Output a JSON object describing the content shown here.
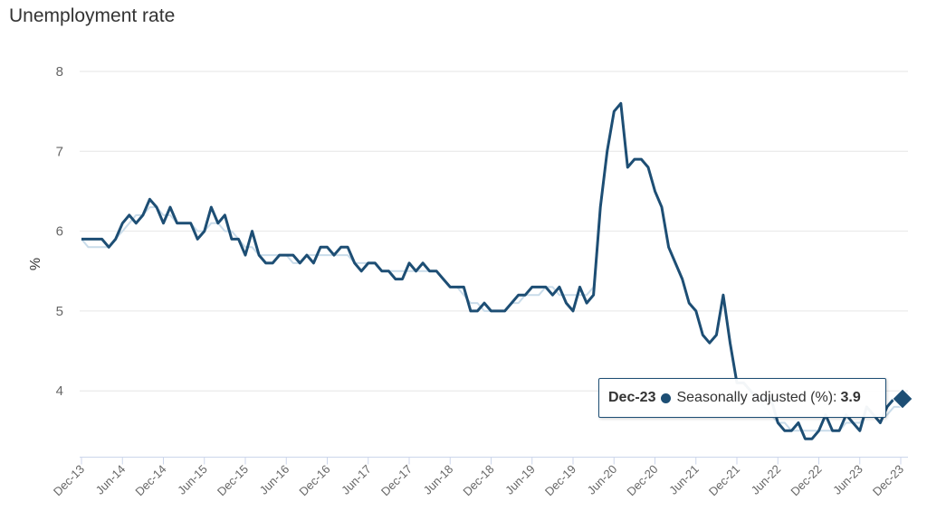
{
  "chart_data": {
    "type": "line",
    "title": "Unemployment rate",
    "xlabel": "",
    "ylabel": "%",
    "ylim": [
      3.17,
      8
    ],
    "yticks": [
      4,
      5,
      6,
      7,
      8
    ],
    "grid": true,
    "x_tick_labels": [
      "Dec-13",
      "Jun-14",
      "Dec-14",
      "Jun-15",
      "Dec-15",
      "Jun-16",
      "Dec-16",
      "Jun-17",
      "Dec-17",
      "Jun-18",
      "Dec-18",
      "Jun-19",
      "Dec-19",
      "Jun-20",
      "Dec-20",
      "Jun-21",
      "Dec-21",
      "Jun-22",
      "Dec-22",
      "Jun-23",
      "Dec-23"
    ],
    "x_start": "Dec-13",
    "x_frequency": "monthly",
    "series": [
      {
        "name": "",
        "color": "#c9dcea",
        "values": [
          5.9,
          5.8,
          5.8,
          5.8,
          5.8,
          5.9,
          6.0,
          6.1,
          6.2,
          6.2,
          6.3,
          6.3,
          6.2,
          6.2,
          6.1,
          6.1,
          6.1,
          6.0,
          6.0,
          6.1,
          6.1,
          6.0,
          6.0,
          5.9,
          5.8,
          5.8,
          5.7,
          5.7,
          5.7,
          5.7,
          5.7,
          5.6,
          5.6,
          5.7,
          5.7,
          5.7,
          5.7,
          5.7,
          5.7,
          5.7,
          5.6,
          5.6,
          5.6,
          5.6,
          5.5,
          5.5,
          5.5,
          5.5,
          5.5,
          5.5,
          5.5,
          5.5,
          5.5,
          5.4,
          5.3,
          5.3,
          5.2,
          5.1,
          5.1,
          5.0,
          5.0,
          5.0,
          5.0,
          5.1,
          5.1,
          5.2,
          5.2,
          5.2,
          5.3,
          5.3,
          5.2,
          5.2,
          5.2,
          5.2,
          5.2,
          5.3,
          6.3,
          7.0,
          7.5,
          7.6,
          6.8,
          6.9,
          6.9,
          6.8,
          6.5,
          6.3,
          5.8,
          5.6,
          5.4,
          5.1,
          5.0,
          4.7,
          4.6,
          4.7,
          5.2,
          4.6,
          4.1,
          4.1,
          4.0,
          3.9,
          3.8,
          3.7,
          3.6,
          3.6,
          3.5,
          3.5,
          3.5,
          3.5,
          3.5,
          3.5,
          3.5,
          3.5,
          3.6,
          3.6,
          3.6,
          3.7,
          3.7,
          3.7,
          3.7,
          3.8,
          3.8
        ]
      },
      {
        "name": "Seasonally adjusted (%)",
        "color": "#1d4e74",
        "values": [
          5.9,
          5.9,
          5.9,
          5.9,
          5.8,
          5.9,
          6.1,
          6.2,
          6.1,
          6.2,
          6.4,
          6.3,
          6.1,
          6.3,
          6.1,
          6.1,
          6.1,
          5.9,
          6.0,
          6.3,
          6.1,
          6.2,
          5.9,
          5.9,
          5.7,
          6.0,
          5.7,
          5.6,
          5.6,
          5.7,
          5.7,
          5.7,
          5.6,
          5.7,
          5.6,
          5.8,
          5.8,
          5.7,
          5.8,
          5.8,
          5.6,
          5.5,
          5.6,
          5.6,
          5.5,
          5.5,
          5.4,
          5.4,
          5.6,
          5.5,
          5.6,
          5.5,
          5.5,
          5.4,
          5.3,
          5.3,
          5.3,
          5.0,
          5.0,
          5.1,
          5.0,
          5.0,
          5.0,
          5.1,
          5.2,
          5.2,
          5.3,
          5.3,
          5.3,
          5.2,
          5.3,
          5.1,
          5.0,
          5.3,
          5.1,
          5.2,
          6.3,
          7.0,
          7.5,
          7.6,
          6.8,
          6.9,
          6.9,
          6.8,
          6.5,
          6.3,
          5.8,
          5.6,
          5.4,
          5.1,
          5.0,
          4.7,
          4.6,
          4.7,
          5.2,
          4.6,
          4.1,
          4.1,
          4.0,
          3.9,
          3.9,
          3.9,
          3.6,
          3.5,
          3.5,
          3.6,
          3.4,
          3.4,
          3.5,
          3.7,
          3.5,
          3.5,
          3.7,
          3.6,
          3.5,
          3.8,
          3.7,
          3.6,
          3.8,
          3.9,
          3.9
        ]
      }
    ],
    "tooltip": {
      "label": "Dec-23",
      "series": "Seasonally adjusted (%): ",
      "value": "3.9"
    }
  }
}
